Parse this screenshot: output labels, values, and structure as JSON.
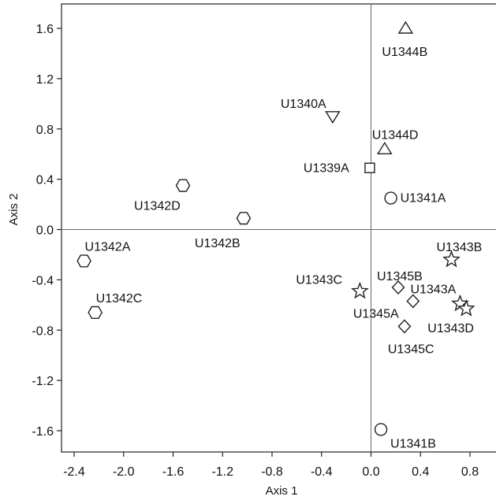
{
  "chart_data": {
    "type": "scatter",
    "title": "",
    "xlabel": "Axis 1",
    "ylabel": "Axis 2",
    "xlim": [
      -2.5,
      0.95
    ],
    "ylim": [
      -1.78,
      1.76
    ],
    "xticks": [
      -2.4,
      -2.0,
      -1.6,
      -1.2,
      -0.8,
      -0.4,
      0.0,
      0.4,
      0.8
    ],
    "xtick_labels": [
      "-2.4",
      "-2.0",
      "-1.6",
      "-1.2",
      "-0.8",
      "-0.4",
      "0.0",
      "0.4",
      "0.8"
    ],
    "yticks": [
      1.6,
      1.2,
      0.8,
      0.4,
      0.0,
      -0.4,
      -0.8,
      -1.2,
      -1.6
    ],
    "ytick_labels": [
      "1.6",
      "1.2",
      "0.8",
      "0.4",
      "0.0",
      "-0.4",
      "-0.8",
      "-1.2",
      "-1.6"
    ],
    "zero_lines": true,
    "grid": false,
    "legend": "none",
    "points": [
      {
        "label": "U1344B",
        "x": 0.28,
        "y": 1.6,
        "marker": "triangle-up"
      },
      {
        "label": "U1340A",
        "x": -0.31,
        "y": 0.9,
        "marker": "triangle-down"
      },
      {
        "label": "U1344D",
        "x": 0.11,
        "y": 0.64,
        "marker": "triangle-up"
      },
      {
        "label": "U1339A",
        "x": -0.01,
        "y": 0.49,
        "marker": "square"
      },
      {
        "label": "U1341A",
        "x": 0.16,
        "y": 0.25,
        "marker": "circle"
      },
      {
        "label": "U1342D",
        "x": -1.52,
        "y": 0.35,
        "marker": "hexagon"
      },
      {
        "label": "U1342B",
        "x": -1.03,
        "y": 0.09,
        "marker": "hexagon"
      },
      {
        "label": "U1342A",
        "x": -2.32,
        "y": -0.25,
        "marker": "hexagon"
      },
      {
        "label": "U1342C",
        "x": -2.23,
        "y": -0.66,
        "marker": "hexagon"
      },
      {
        "label": "U1343B",
        "x": 0.65,
        "y": -0.24,
        "marker": "star"
      },
      {
        "label": "U1343C",
        "x": -0.09,
        "y": -0.49,
        "marker": "star"
      },
      {
        "label": "U1345B",
        "x": 0.22,
        "y": -0.46,
        "marker": "diamond"
      },
      {
        "label": "U1345A",
        "x": 0.34,
        "y": -0.57,
        "marker": "diamond"
      },
      {
        "label": "U1343A",
        "x": 0.72,
        "y": -0.59,
        "marker": "star"
      },
      {
        "label": "U1343D",
        "x": 0.77,
        "y": -0.63,
        "marker": "star"
      },
      {
        "label": "U1345C",
        "x": 0.27,
        "y": -0.77,
        "marker": "diamond"
      },
      {
        "label": "U1341B",
        "x": 0.08,
        "y": -1.59,
        "marker": "circle"
      }
    ]
  }
}
